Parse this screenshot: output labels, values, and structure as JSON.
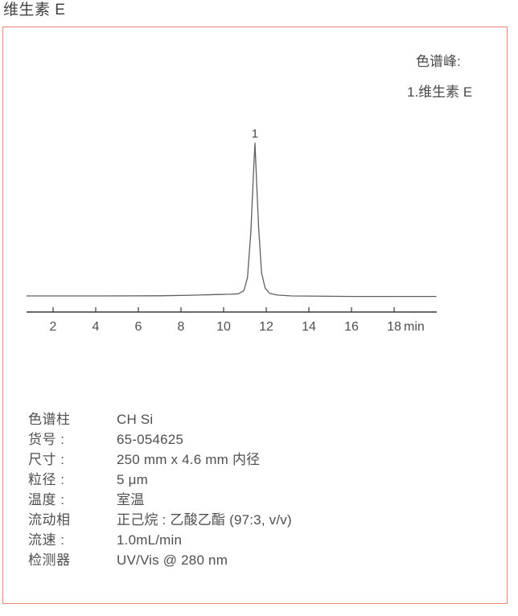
{
  "page": {
    "title": "维生素 E"
  },
  "panel": {
    "legend": {
      "heading": "色谱峰:",
      "peaks": [
        {
          "label": "1.维生素 E"
        }
      ]
    },
    "conditions": [
      {
        "label": "色谱柱",
        "value": "CH Si"
      },
      {
        "label": "货号 :",
        "value": "65-054625"
      },
      {
        "label": "尺寸 :",
        "value": "250 mm x 4.6 mm 内径"
      },
      {
        "label": "粒径 :",
        "value": "5 μm"
      },
      {
        "label": "温度 :",
        "value": "室温"
      },
      {
        "label": "流动相",
        "value": "正己烷 : 乙酸乙酯 (97:3, v/v)"
      },
      {
        "label": "流速 :",
        "value": "1.0mL/min"
      },
      {
        "label": "检测器",
        "value": "UV/Vis @ 280 nm"
      }
    ]
  },
  "chart_data": {
    "type": "line",
    "title": "",
    "xlabel": "min",
    "ylabel": "",
    "x_axis": {
      "ticks": [
        2,
        4,
        6,
        8,
        10,
        12,
        14,
        16,
        18
      ],
      "unit_label": "min",
      "domain_min": [
        0.75,
        19.98
      ],
      "grid": false
    },
    "peaks": [
      {
        "number": "1",
        "retention_time_min": 11.47,
        "name": "维生素 E"
      }
    ],
    "trace_time_signal": [
      [
        0.75,
        0.0
      ],
      [
        4.0,
        0.0
      ],
      [
        7.0,
        0.001
      ],
      [
        8.5,
        0.005
      ],
      [
        9.6,
        0.009
      ],
      [
        10.3,
        0.011
      ],
      [
        10.7,
        0.014
      ],
      [
        10.95,
        0.035
      ],
      [
        11.12,
        0.12
      ],
      [
        11.28,
        0.42
      ],
      [
        11.4,
        0.8
      ],
      [
        11.47,
        1.0
      ],
      [
        11.55,
        0.74
      ],
      [
        11.64,
        0.45
      ],
      [
        11.78,
        0.15
      ],
      [
        11.95,
        0.05
      ],
      [
        12.15,
        0.018
      ],
      [
        12.5,
        0.006
      ],
      [
        13.2,
        0.0
      ],
      [
        16.0,
        -0.003
      ],
      [
        19.98,
        -0.003
      ]
    ]
  },
  "colors": {
    "panel_border": "#f08574",
    "trace": "#5f5f5f",
    "axis": "#3a3a3a",
    "text": "#4a4a4a"
  }
}
